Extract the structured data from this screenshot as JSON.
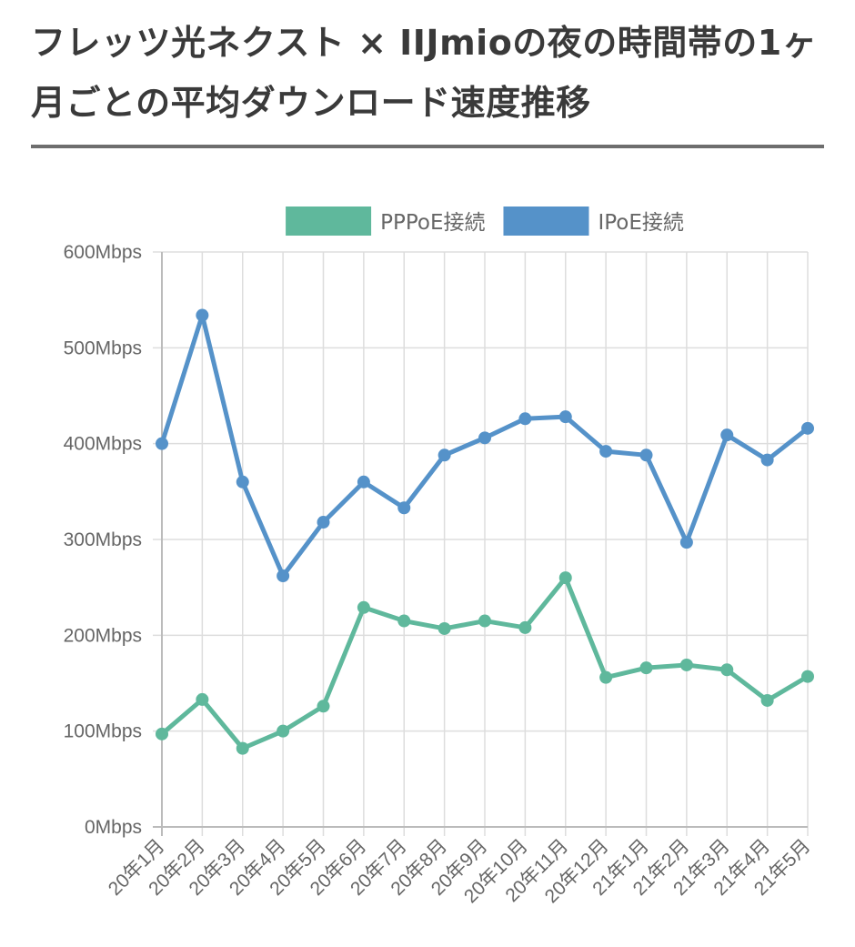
{
  "page": {
    "title": "フレッツ光ネクスト × IIJmioの夜の時間帯の1ヶ月ごとの平均ダウンロード速度推移"
  },
  "chart_data": {
    "type": "line",
    "title": "",
    "xlabel": "",
    "ylabel": "",
    "categories": [
      "20年1月",
      "20年2月",
      "20年3月",
      "20年4月",
      "20年5月",
      "20年6月",
      "20年7月",
      "20年8月",
      "20年9月",
      "20年10月",
      "20年11月",
      "20年12月",
      "21年1月",
      "21年2月",
      "21年3月",
      "21年4月",
      "21年5月"
    ],
    "series": [
      {
        "name": "PPPoE接続",
        "color": "#5fb89c",
        "values": [
          97,
          133,
          82,
          100,
          126,
          229,
          215,
          207,
          215,
          208,
          260,
          156,
          166,
          169,
          164,
          132,
          157
        ]
      },
      {
        "name": "IPoE接続",
        "color": "#5592c9",
        "values": [
          400,
          534,
          360,
          262,
          318,
          360,
          333,
          388,
          406,
          426,
          428,
          392,
          388,
          297,
          409,
          383,
          416
        ]
      }
    ],
    "ylim": [
      0,
      600
    ],
    "y_ticks": [
      "0Mbps",
      "100Mbps",
      "200Mbps",
      "300Mbps",
      "400Mbps",
      "500Mbps",
      "600Mbps"
    ],
    "grid": true,
    "legend_position": "top-center"
  }
}
